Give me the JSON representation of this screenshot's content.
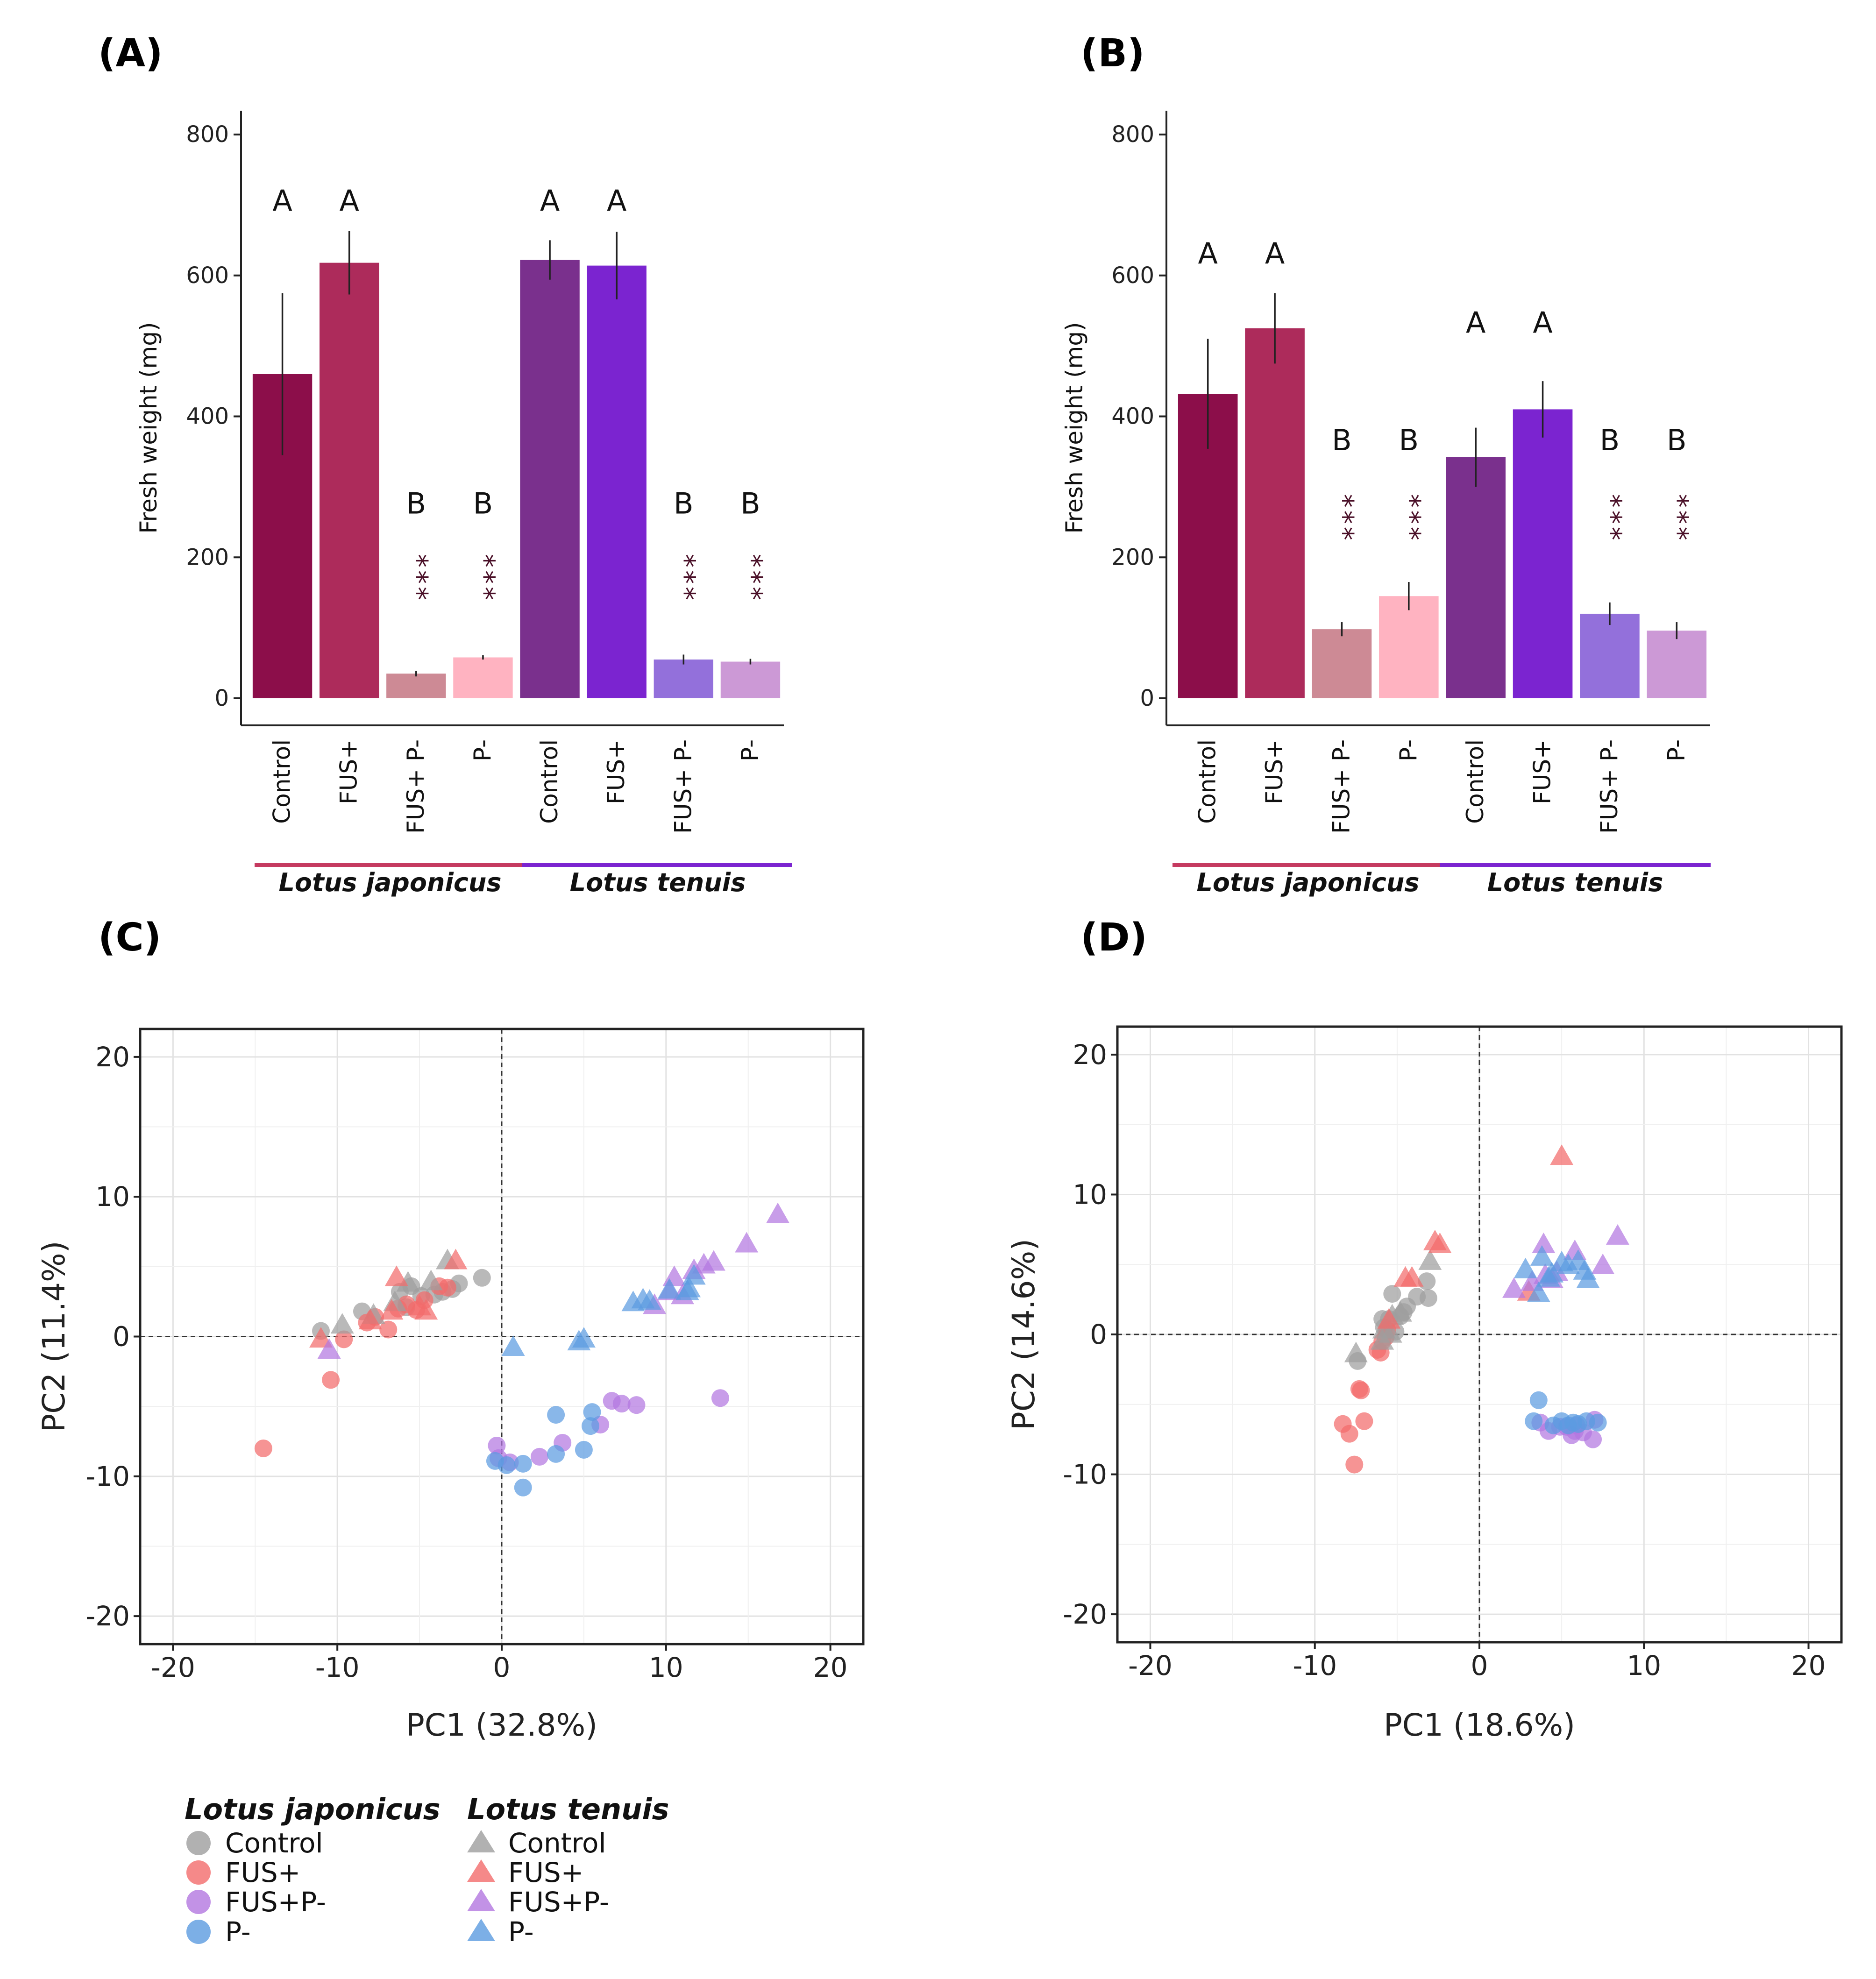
{
  "colors": {
    "lj_control": "#8c0e4a",
    "lj_fus": "#ad2b5b",
    "lj_fusp": "#cd8a95",
    "lj_p": "#ffb3c1",
    "lt_control": "#7a308d",
    "lt_fus": "#7b24d0",
    "lt_fusp": "#9370db",
    "lt_p": "#cc99d6",
    "pca_control": "#9e9e9e",
    "pca_fus": "#f26b6b",
    "pca_fusp": "#b377e0",
    "pca_p": "#5b9be0",
    "lj_line": "#c53a60",
    "lt_line": "#7b24d0",
    "star": "#4a1028"
  },
  "species_labels": {
    "lj": "Lotus japonicus",
    "lt": "Lotus tenuis"
  },
  "chart_data": [
    {
      "panel": "(A)",
      "type": "bar",
      "ylabel": "Fresh weight (mg)",
      "ylim": [
        0,
        800
      ],
      "yticks": [
        0,
        200,
        400,
        600,
        800
      ],
      "categories": [
        "Control",
        "FUS+",
        "FUS+ P-",
        "P-",
        "Control",
        "FUS+",
        "FUS+ P-",
        "P-"
      ],
      "groups": [
        "Lotus japonicus",
        "Lotus tenuis"
      ],
      "values": [
        460,
        618,
        35,
        58,
        622,
        614,
        55,
        52
      ],
      "errors": [
        115,
        45,
        4,
        3,
        28,
        48,
        7,
        4
      ],
      "letters": [
        "A",
        "A",
        "B",
        "B",
        "A",
        "A",
        "B",
        "B"
      ],
      "significance": [
        "",
        "",
        "***",
        "***",
        "",
        "",
        "***",
        "***"
      ],
      "letter_y": [
        692,
        692,
        262,
        262,
        692,
        692,
        262,
        262
      ],
      "star_y": [
        170,
        170,
        170,
        170,
        170,
        170,
        170,
        170
      ]
    },
    {
      "panel": "(B)",
      "type": "bar",
      "ylabel": "Fresh weight (mg)",
      "ylim": [
        0,
        800
      ],
      "yticks": [
        0,
        200,
        400,
        600,
        800
      ],
      "categories": [
        "Control",
        "FUS+",
        "FUS+ P-",
        "P-",
        "Control",
        "FUS+",
        "FUS+ P-",
        "P-"
      ],
      "groups": [
        "Lotus japonicus",
        "Lotus tenuis"
      ],
      "values": [
        432,
        525,
        98,
        145,
        342,
        410,
        120,
        96
      ],
      "errors": [
        78,
        50,
        10,
        20,
        42,
        40,
        16,
        12
      ],
      "letters": [
        "A",
        "A",
        "B",
        "B",
        "A",
        "A",
        "B",
        "B"
      ],
      "significance": [
        "",
        "",
        "***",
        "***",
        "",
        "",
        "***",
        "***"
      ],
      "letter_y": [
        617,
        617,
        352,
        352,
        519,
        519,
        352,
        352
      ],
      "star_y": [
        255,
        255,
        255,
        255,
        255,
        255,
        255,
        255
      ]
    },
    {
      "panel": "(C)",
      "type": "scatter",
      "xlabel": "PC1 (32.8%)",
      "ylabel": "PC2 (11.4%)",
      "xlim": [
        -22,
        22
      ],
      "ylim": [
        -22,
        22
      ],
      "xticks": [
        -20,
        -10,
        0,
        10,
        20
      ],
      "yticks": [
        -20,
        -10,
        0,
        10,
        20
      ],
      "series": [
        {
          "name": "Lotus japonicus Control",
          "marker": "circle",
          "color": "pca_control",
          "points": [
            [
              -11,
              0.4
            ],
            [
              -8.5,
              1.8
            ],
            [
              -6.2,
              3.2
            ],
            [
              -5.5,
              3.6
            ],
            [
              -4.9,
              2.9
            ],
            [
              -3.6,
              3.2
            ],
            [
              -3.0,
              3.4
            ],
            [
              -2.6,
              3.8
            ],
            [
              -1.2,
              4.2
            ],
            [
              -5.8,
              2.1
            ],
            [
              -4.1,
              3.0
            ]
          ]
        },
        {
          "name": "Lotus japonicus FUS+",
          "marker": "circle",
          "color": "pca_fus",
          "points": [
            [
              -14.5,
              -8
            ],
            [
              -10.4,
              -3.1
            ],
            [
              -9.6,
              -0.2
            ],
            [
              -8.2,
              1.0
            ],
            [
              -7.7,
              1.4
            ],
            [
              -6.9,
              0.5
            ],
            [
              -6.3,
              2.0
            ],
            [
              -5.8,
              2.3
            ],
            [
              -5.2,
              1.9
            ],
            [
              -4.7,
              2.6
            ],
            [
              -3.8,
              3.6
            ],
            [
              -3.3,
              3.5
            ]
          ]
        },
        {
          "name": "Lotus japonicus FUS+P-",
          "marker": "circle",
          "color": "pca_fusp",
          "points": [
            [
              -0.3,
              -7.8
            ],
            [
              0.5,
              -9.0
            ],
            [
              2.3,
              -8.6
            ],
            [
              3.7,
              -7.6
            ],
            [
              6.0,
              -6.3
            ],
            [
              6.7,
              -4.6
            ],
            [
              7.3,
              -4.8
            ],
            [
              8.2,
              -4.9
            ],
            [
              13.3,
              -4.4
            ],
            [
              -0.2,
              -8.7
            ]
          ]
        },
        {
          "name": "Lotus japonicus P-",
          "marker": "circle",
          "color": "pca_p",
          "points": [
            [
              -0.4,
              -8.9
            ],
            [
              0.3,
              -9.2
            ],
            [
              1.3,
              -9.1
            ],
            [
              1.3,
              -10.8
            ],
            [
              3.3,
              -8.4
            ],
            [
              3.3,
              -5.6
            ],
            [
              5.0,
              -8.1
            ],
            [
              5.4,
              -6.4
            ],
            [
              5.5,
              -5.4
            ]
          ]
        },
        {
          "name": "Lotus tenuis Control",
          "marker": "triangle",
          "color": "pca_control",
          "points": [
            [
              -9.7,
              0.8
            ],
            [
              -7.8,
              1.5
            ],
            [
              -5.7,
              3.8
            ],
            [
              -4.3,
              3.9
            ],
            [
              -3.3,
              5.4
            ],
            [
              -6.5,
              2.4
            ]
          ]
        },
        {
          "name": "Lotus tenuis FUS+",
          "marker": "triangle",
          "color": "pca_fus",
          "points": [
            [
              -11,
              -0.2
            ],
            [
              -6.7,
              1.8
            ],
            [
              -6.4,
              4.2
            ],
            [
              -5.0,
              2.1
            ],
            [
              -4.6,
              1.8
            ],
            [
              -2.8,
              5.4
            ],
            [
              -8.0,
              1.1
            ]
          ]
        },
        {
          "name": "Lotus tenuis FUS+P-",
          "marker": "triangle",
          "color": "pca_fusp",
          "points": [
            [
              -10.5,
              -1.0
            ],
            [
              9.3,
              2.2
            ],
            [
              10.2,
              3.2
            ],
            [
              10.5,
              4.2
            ],
            [
              11.0,
              2.9
            ],
            [
              11.7,
              4.7
            ],
            [
              12.3,
              5.1
            ],
            [
              12.9,
              5.3
            ],
            [
              14.9,
              6.6
            ],
            [
              16.8,
              8.7
            ]
          ]
        },
        {
          "name": "Lotus tenuis P-",
          "marker": "triangle",
          "color": "pca_p",
          "points": [
            [
              0.7,
              -0.8
            ],
            [
              4.7,
              -0.4
            ],
            [
              5.0,
              -0.2
            ],
            [
              8.0,
              2.4
            ],
            [
              8.6,
              2.6
            ],
            [
              10.2,
              3.3
            ],
            [
              11.3,
              3.2
            ],
            [
              11.7,
              4.3
            ],
            [
              11.4,
              3.4
            ],
            [
              9.0,
              2.5
            ]
          ]
        }
      ]
    },
    {
      "panel": "(D)",
      "type": "scatter",
      "xlabel": "PC1 (18.6%)",
      "ylabel": "PC2 (14.6%)",
      "xlim": [
        -22,
        22
      ],
      "ylim": [
        -22,
        22
      ],
      "xticks": [
        -20,
        -10,
        0,
        10,
        20
      ],
      "yticks": [
        -20,
        -10,
        0,
        10,
        20
      ],
      "series": [
        {
          "name": "Lotus japonicus Control",
          "marker": "circle",
          "color": "pca_control",
          "points": [
            [
              -7.4,
              -1.9
            ],
            [
              -5.8,
              0.5
            ],
            [
              -5.5,
              1.1
            ],
            [
              -5.1,
              0.2
            ],
            [
              -4.6,
              1.6
            ],
            [
              -3.8,
              2.7
            ],
            [
              -3.2,
              3.8
            ],
            [
              -3.1,
              2.6
            ],
            [
              -5.3,
              2.9
            ],
            [
              -5.9,
              1.1
            ],
            [
              -4.8,
              1.3
            ],
            [
              -4.4,
              2.0
            ]
          ]
        },
        {
          "name": "Lotus japonicus FUS+",
          "marker": "circle",
          "color": "pca_fus",
          "points": [
            [
              -8.3,
              -6.4
            ],
            [
              -7.9,
              -7.1
            ],
            [
              -7.6,
              -9.3
            ],
            [
              -7.3,
              -3.9
            ],
            [
              -7.2,
              -4.0
            ],
            [
              -7.0,
              -6.2
            ],
            [
              -6.2,
              -1.1
            ],
            [
              -5.9,
              -0.5
            ],
            [
              -5.7,
              -0.2
            ],
            [
              -5.6,
              0.3
            ],
            [
              -6.0,
              -1.3
            ]
          ]
        },
        {
          "name": "Lotus japonicus FUS+P-",
          "marker": "circle",
          "color": "pca_fusp",
          "points": [
            [
              3.7,
              -6.3
            ],
            [
              4.2,
              -6.9
            ],
            [
              5.3,
              -6.6
            ],
            [
              5.6,
              -7.2
            ],
            [
              5.9,
              -6.5
            ],
            [
              6.3,
              -7.0
            ],
            [
              6.9,
              -7.5
            ],
            [
              7.0,
              -6.1
            ],
            [
              4.9,
              -6.6
            ],
            [
              5.8,
              -6.9
            ]
          ]
        },
        {
          "name": "Lotus japonicus P-",
          "marker": "circle",
          "color": "pca_p",
          "points": [
            [
              3.3,
              -6.2
            ],
            [
              3.6,
              -4.7
            ],
            [
              4.5,
              -6.5
            ],
            [
              5.0,
              -6.2
            ],
            [
              5.4,
              -6.5
            ],
            [
              6.0,
              -6.4
            ],
            [
              6.5,
              -6.2
            ],
            [
              7.2,
              -6.3
            ],
            [
              5.7,
              -6.3
            ]
          ]
        },
        {
          "name": "Lotus tenuis Control",
          "marker": "triangle",
          "color": "pca_control",
          "points": [
            [
              -7.5,
              -1.4
            ],
            [
              -5.9,
              -0.5
            ],
            [
              -5.8,
              0.3
            ],
            [
              -5.3,
              1.3
            ],
            [
              -4.8,
              1.5
            ],
            [
              -3.0,
              5.2
            ],
            [
              -5.4,
              0.0
            ]
          ]
        },
        {
          "name": "Lotus tenuis FUS+",
          "marker": "triangle",
          "color": "pca_fus",
          "points": [
            [
              5.0,
              12.7
            ],
            [
              -4.5,
              4.0
            ],
            [
              -4.1,
              4.0
            ],
            [
              -2.7,
              6.6
            ],
            [
              -2.4,
              6.4
            ],
            [
              -5.5,
              1.0
            ],
            [
              3.0,
              3.0
            ]
          ]
        },
        {
          "name": "Lotus tenuis FUS+P-",
          "marker": "triangle",
          "color": "pca_fusp",
          "points": [
            [
              2.1,
              3.2
            ],
            [
              3.2,
              3.7
            ],
            [
              3.9,
              6.4
            ],
            [
              4.0,
              4.2
            ],
            [
              4.4,
              3.9
            ],
            [
              4.7,
              4.4
            ],
            [
              5.8,
              5.9
            ],
            [
              7.5,
              4.9
            ],
            [
              8.4,
              7.0
            ]
          ]
        },
        {
          "name": "Lotus tenuis P-",
          "marker": "triangle",
          "color": "pca_p",
          "points": [
            [
              2.8,
              4.6
            ],
            [
              3.6,
              2.9
            ],
            [
              3.8,
              5.5
            ],
            [
              4.4,
              4.3
            ],
            [
              5.0,
              5.1
            ],
            [
              5.4,
              4.9
            ],
            [
              6.0,
              5.2
            ],
            [
              6.4,
              4.5
            ],
            [
              6.6,
              3.9
            ],
            [
              4.2,
              4.0
            ]
          ]
        }
      ]
    }
  ],
  "legend": {
    "lj_title": "Lotus japonicus",
    "lt_title": "Lotus tenuis",
    "lj_items": [
      {
        "label": "Control",
        "color": "pca_control"
      },
      {
        "label": "FUS+",
        "color": "pca_fus"
      },
      {
        "label": "FUS+P-",
        "color": "pca_fusp"
      },
      {
        "label": "P-",
        "color": "pca_p"
      }
    ],
    "lt_items": [
      {
        "label": "Control",
        "color": "pca_control"
      },
      {
        "label": "FUS+",
        "color": "pca_fus"
      },
      {
        "label": "FUS+P-",
        "color": "pca_fusp"
      },
      {
        "label": "P-",
        "color": "pca_p"
      }
    ]
  }
}
